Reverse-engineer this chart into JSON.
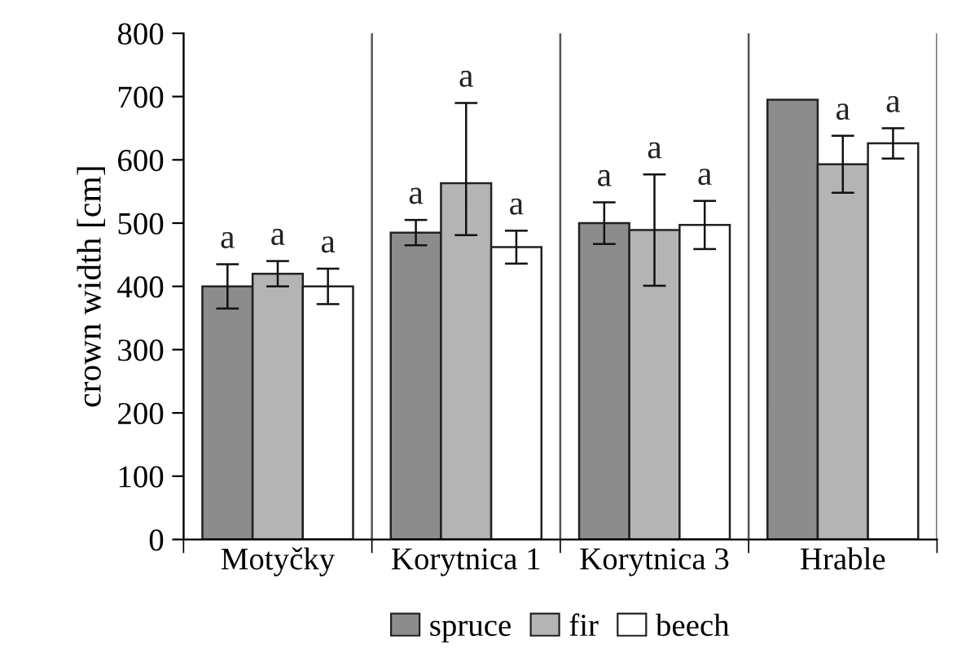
{
  "chart_data": {
    "type": "bar",
    "ylabel": "crown width [cm]",
    "categories": [
      "Motyčky",
      "Korytnica 1",
      "Korytnica 3",
      "Hrable"
    ],
    "series": [
      {
        "name": "spruce",
        "color": "#8c8c8c",
        "values": [
          400,
          485,
          500,
          695
        ],
        "errors": [
          35,
          20,
          33,
          null
        ],
        "value_labels": [
          "a",
          "a",
          "a",
          null
        ]
      },
      {
        "name": "fir",
        "color": "#b4b4b4",
        "values": [
          420,
          563,
          489,
          593
        ],
        "errors": [
          20,
          [
            481,
            690
          ],
          88,
          45
        ],
        "value_labels": [
          "a",
          "a",
          "a",
          "a"
        ]
      },
      {
        "name": "beech",
        "color": "#ffffff",
        "values": [
          400,
          462,
          497,
          626
        ],
        "errors": [
          28,
          26,
          38,
          24
        ],
        "value_labels": [
          "a",
          "a",
          "a",
          "a"
        ]
      }
    ],
    "ylim": [
      0,
      800
    ],
    "yticks": [
      0,
      100,
      200,
      300,
      400,
      500,
      600,
      700,
      800
    ],
    "grid": "x",
    "legend": "bottom"
  }
}
